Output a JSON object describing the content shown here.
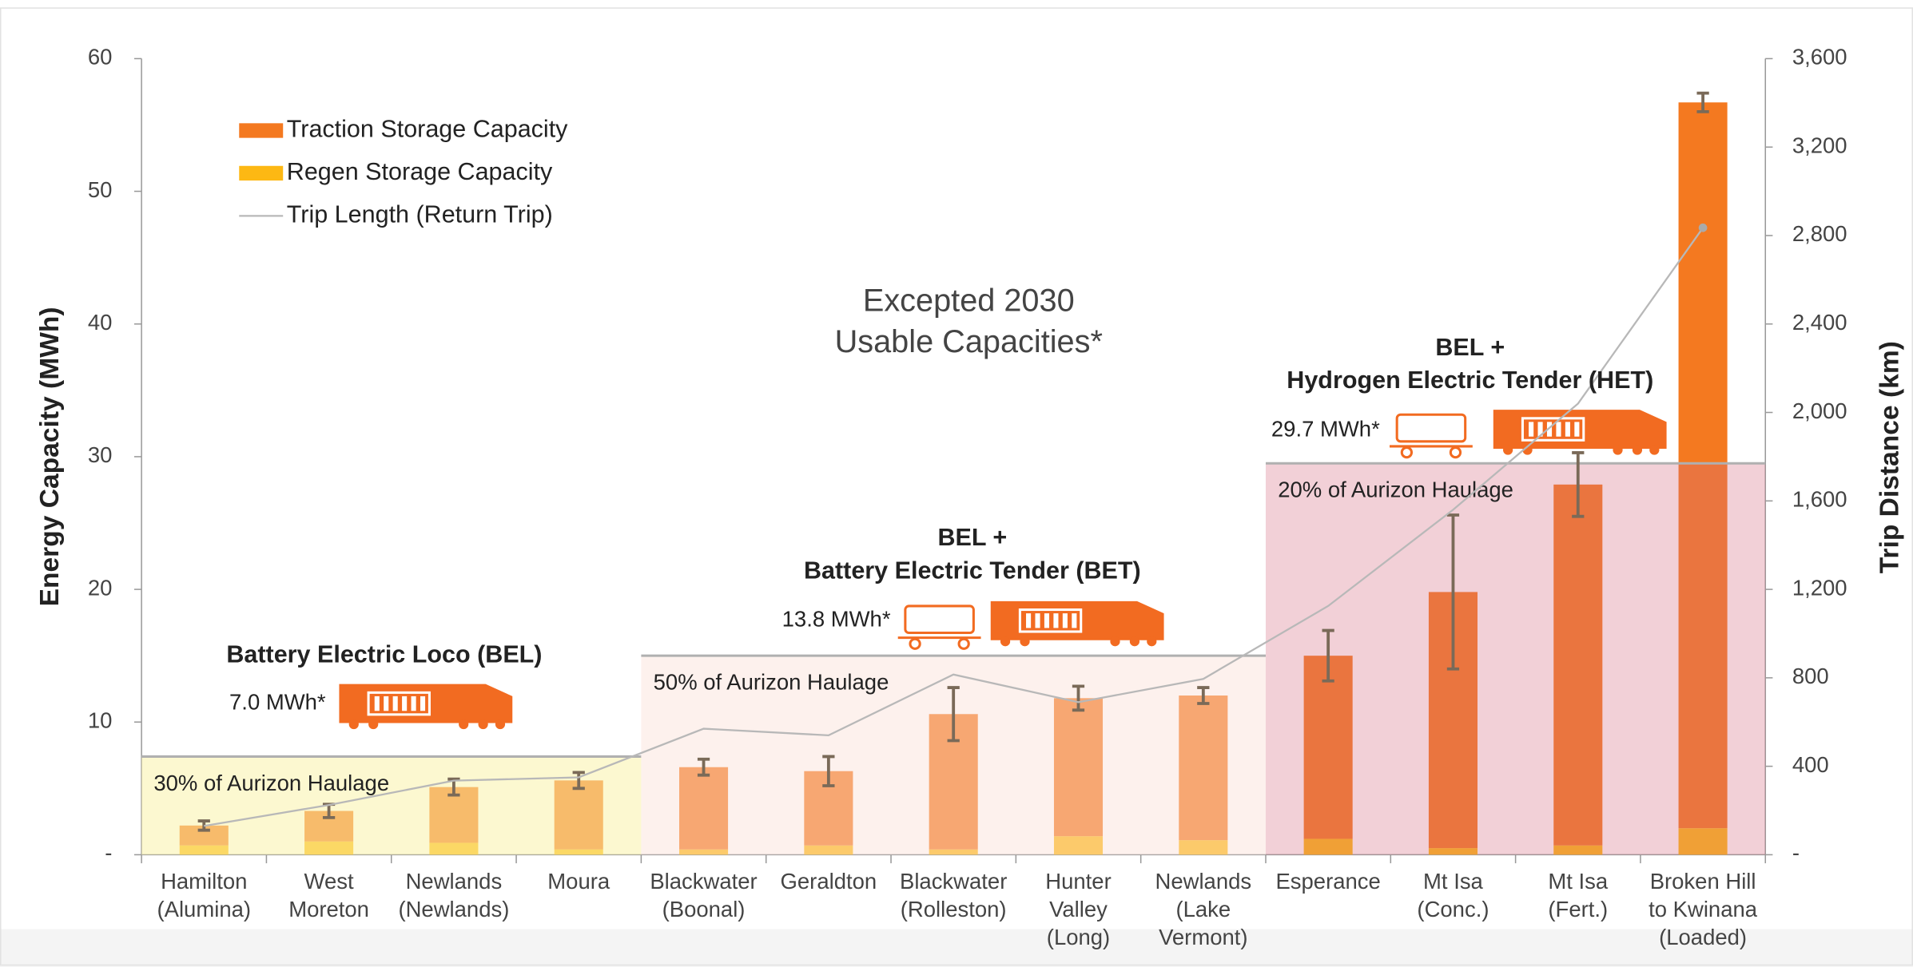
{
  "chart_data": {
    "type": "bar",
    "title": [
      "Excepted 2030",
      "Usable Capacities*"
    ],
    "ylabel": "Energy Capacity (MWh)",
    "y2label": "Trip Distance (km)",
    "categories": [
      [
        "Hamilton",
        "(Alumina)"
      ],
      [
        "West",
        "Moreton"
      ],
      [
        "Newlands",
        "(Newlands)"
      ],
      [
        "Moura"
      ],
      [
        "Blackwater",
        "(Boonal)"
      ],
      [
        "Geraldton"
      ],
      [
        "Blackwater",
        "(Rolleston)"
      ],
      [
        "Hunter",
        "Valley",
        "(Long)"
      ],
      [
        "Newlands",
        "(Lake",
        "Vermont)"
      ],
      [
        "Esperance"
      ],
      [
        "Mt Isa",
        "(Conc.)"
      ],
      [
        "Mt Isa",
        "(Fert.)"
      ],
      [
        "Broken Hill",
        "to Kwinana",
        "(Loaded)"
      ]
    ],
    "series": [
      {
        "name": "Regen Storage Capacity",
        "color": "#fdb813",
        "values": [
          0.7,
          1.0,
          0.9,
          0.4,
          0.4,
          0.7,
          0.4,
          1.4,
          1.1,
          1.2,
          0.5,
          0.7,
          2.0
        ]
      },
      {
        "name": "Traction Storage Capacity",
        "color": "#f47920",
        "values": [
          1.5,
          2.3,
          4.2,
          5.2,
          6.2,
          5.6,
          10.2,
          10.4,
          10.9,
          13.8,
          19.3,
          27.2,
          54.7
        ],
        "errors": [
          0.35,
          0.5,
          0.6,
          0.6,
          0.6,
          1.1,
          2.0,
          0.9,
          0.6,
          1.9,
          5.8,
          2.4,
          0.7
        ]
      },
      {
        "name": "Trip Length (Return Trip)",
        "color": "#b8b8b8",
        "axis": "y2",
        "values": [
          130,
          225,
          335,
          350,
          570,
          540,
          815,
          690,
          795,
          1125,
          1560,
          2040,
          2835
        ]
      }
    ],
    "legend_order": [
      1,
      0,
      2
    ],
    "ylim": [
      0,
      60
    ],
    "yticks": [
      {
        "value": 0,
        "label": "-"
      },
      10,
      20,
      30,
      40,
      50,
      60
    ],
    "y2lim": [
      0,
      3600
    ],
    "y2ticks": [
      {
        "value": 0,
        "label": "-"
      },
      400,
      800,
      {
        "value": 1200,
        "label": "1,200"
      },
      {
        "value": 1600,
        "label": "1,600"
      },
      {
        "value": 2000,
        "label": "2,000"
      },
      {
        "value": 2400,
        "label": "2,400"
      },
      {
        "value": 2800,
        "label": "2,800"
      },
      {
        "value": 3200,
        "label": "3,200"
      },
      {
        "value": 3600,
        "label": "3,600"
      }
    ],
    "regions": [
      {
        "label": "30% of Aurizon Haulage",
        "top": 7.4,
        "from": 0,
        "to": 3,
        "color": "rgba(250,242,170,0.55)",
        "name": [
          "Battery Electric Loco (BEL)"
        ],
        "capacity": "7.0 MWh*"
      },
      {
        "label": "50% of Aurizon Haulage",
        "top": 15.0,
        "from": 4,
        "to": 8,
        "color": "rgba(250,225,215,0.45)",
        "name": [
          "BEL +",
          "Battery Electric Tender (BET)"
        ],
        "capacity": "13.8 MWh*"
      },
      {
        "label": "20% of Aurizon Haulage",
        "top": 29.5,
        "from": 9,
        "to": 12,
        "color": "rgba(215,110,130,0.32)",
        "name": [
          "BEL +",
          "Hydrogen Electric Tender (HET)"
        ],
        "capacity": "29.7 MWh*"
      }
    ]
  }
}
